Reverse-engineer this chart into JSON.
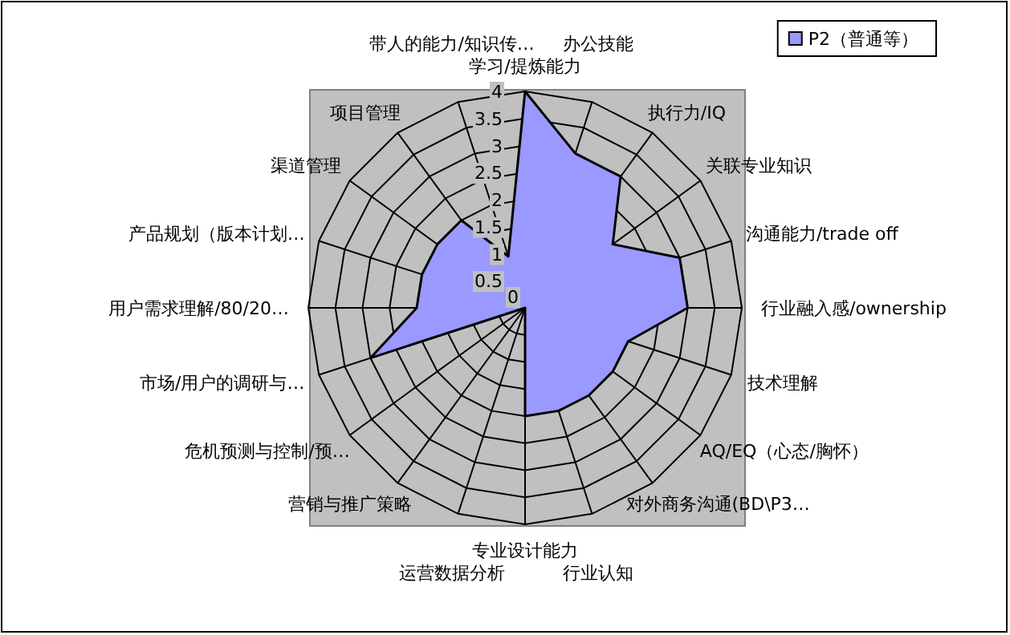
{
  "chart_data": {
    "type": "radar",
    "categories": [
      "学习/提炼能力",
      "办公技能",
      "执行力/IQ",
      "关联专业知识",
      "沟通能力/trade off",
      "行业融入感/ownership",
      "技术理解",
      "AQ/EQ（心态/胸怀）",
      "对外商务沟通(BD\\P3…",
      "行业认知",
      "专业设计能力",
      "运营数据分析",
      "营销与推广策略",
      "危机预测与控制/预…",
      "市场/用户的调研与…",
      "用户需求理解/80/20…",
      "产品规划（版本计划…",
      "渠道管理",
      "项目管理",
      "带人的能力/知识传…"
    ],
    "series": [
      {
        "name": "P2（普通等）",
        "color": "#9999ff",
        "values": [
          4,
          3,
          3,
          2,
          3,
          3,
          2,
          2,
          2,
          2,
          2,
          0,
          0,
          0,
          3,
          2,
          2,
          2,
          2,
          1
        ]
      }
    ],
    "ylim": [
      0,
      4
    ],
    "yticks": [
      0,
      0.5,
      1,
      1.5,
      2,
      2.5,
      3,
      3.5,
      4
    ],
    "grid": true,
    "legend": "top right"
  }
}
